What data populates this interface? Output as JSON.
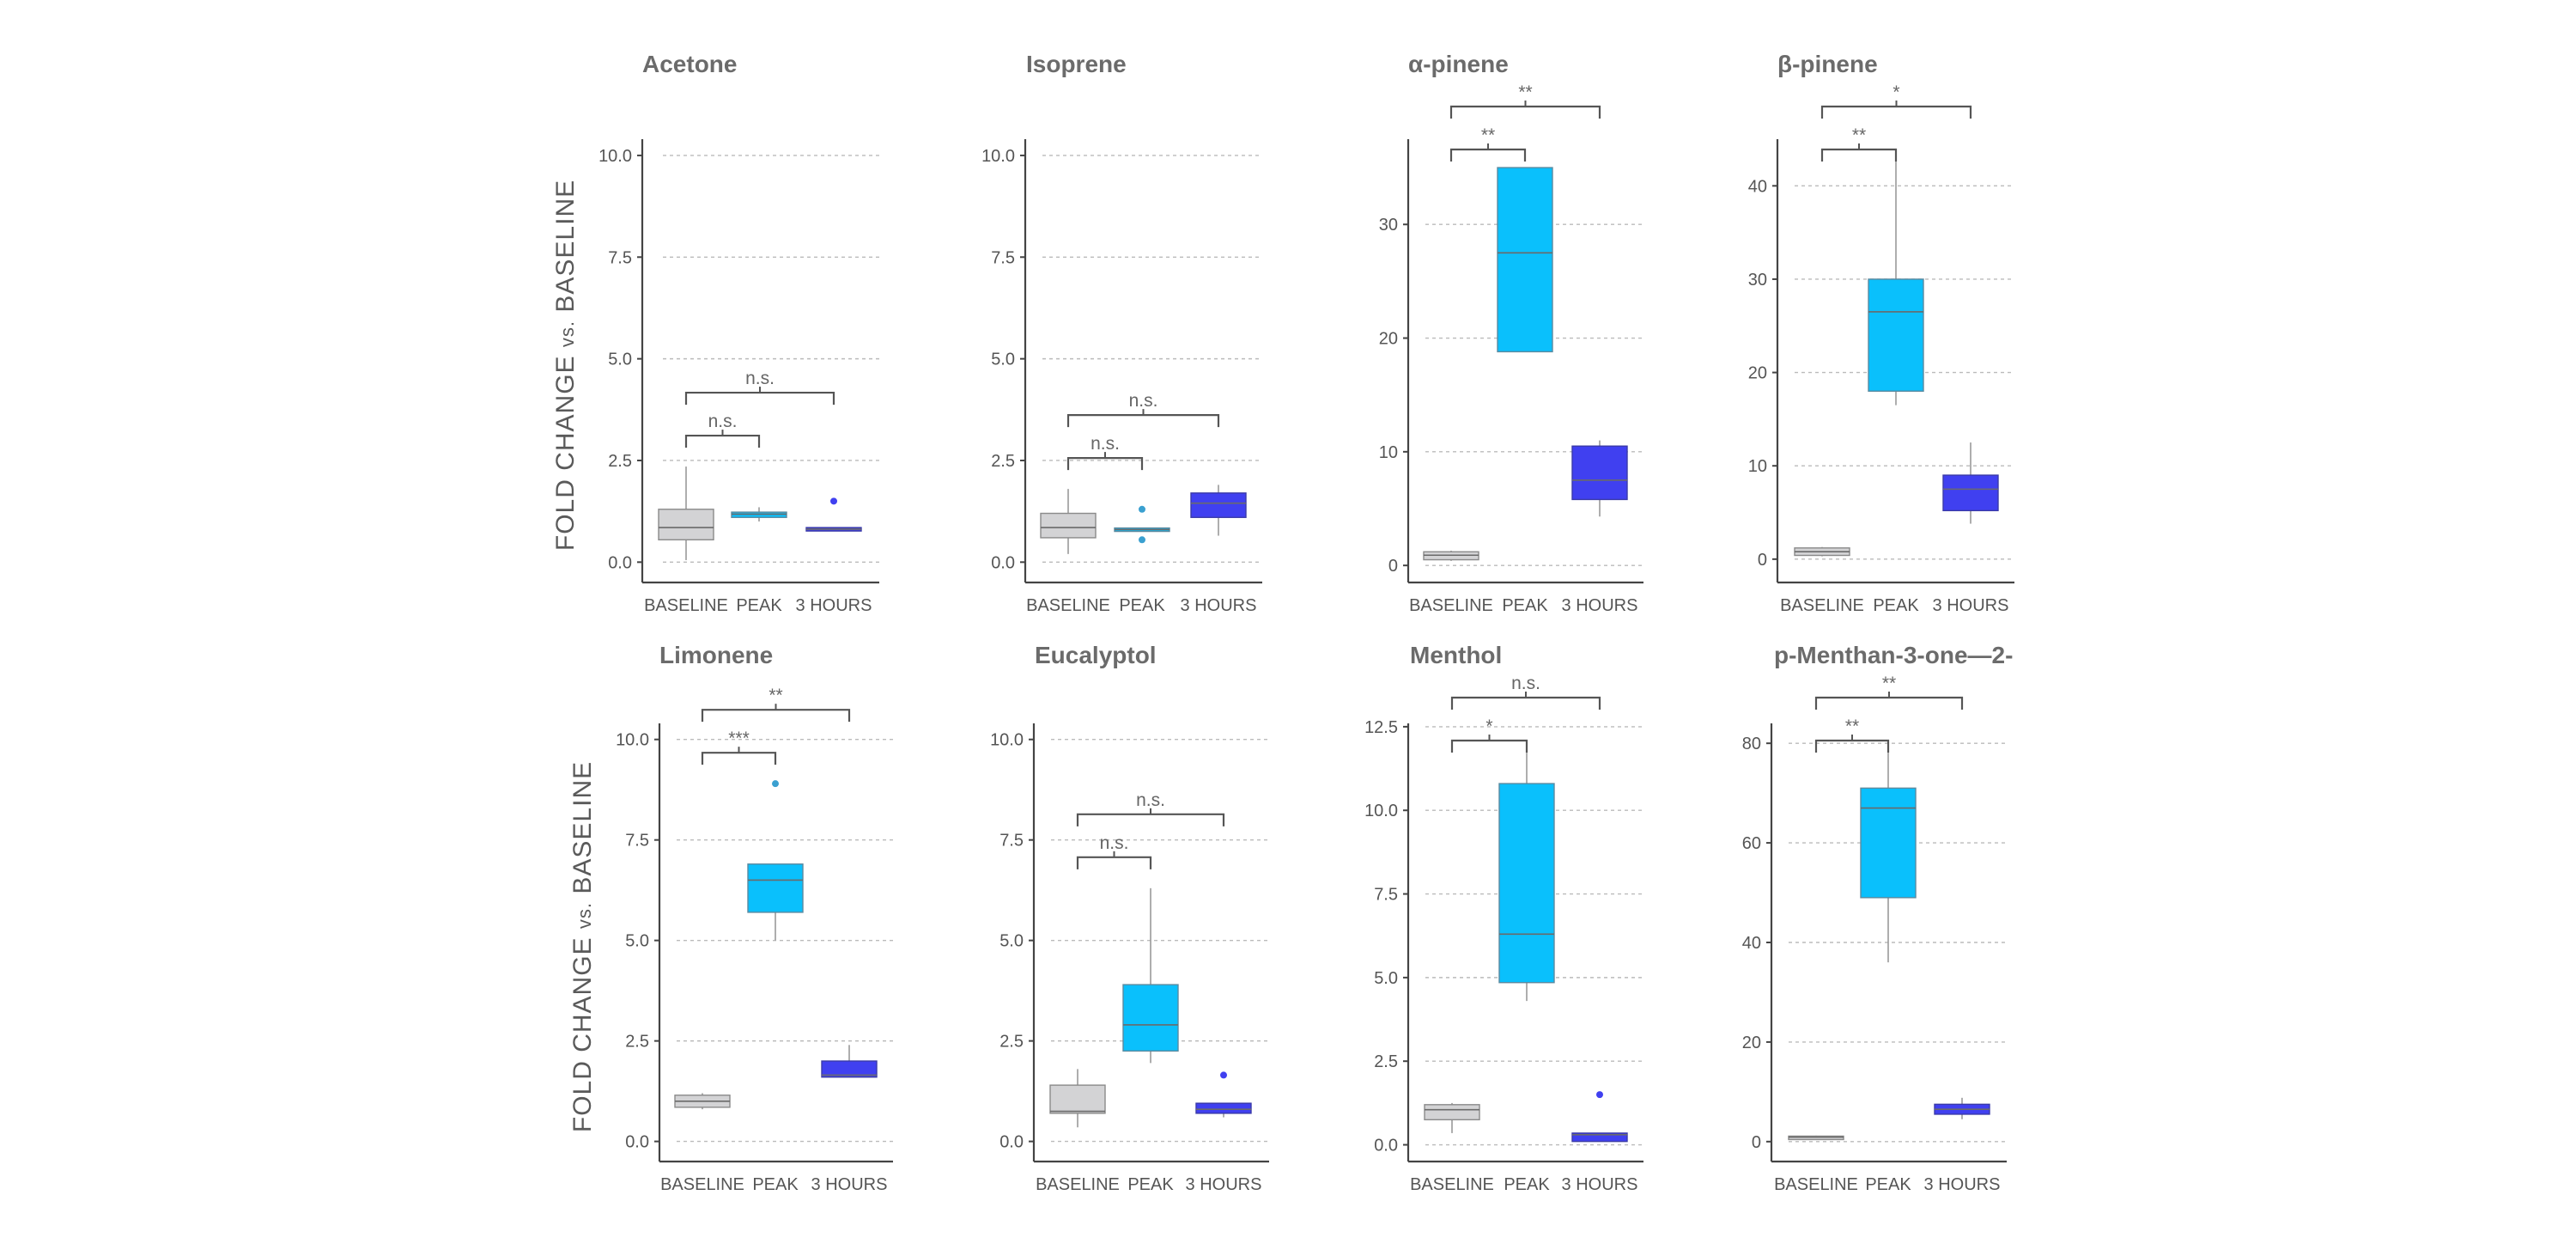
{
  "figure": {
    "y_axis_label_main": "FOLD CHANGE",
    "y_axis_label_vs": "vs.",
    "y_axis_label_end": "BASELINE",
    "colors": {
      "baseline": "#d3d3d5",
      "peak": "#0ac0fc",
      "three_hours": "#4040f0",
      "axis": "#444444",
      "grid": "#bbbbbb"
    }
  },
  "chart_data": [
    {
      "type": "box",
      "title": "Acetone",
      "categories": [
        "BASELINE",
        "PEAK",
        "3 HOURS"
      ],
      "ylim": [
        -0.5,
        10.4
      ],
      "yticks": [
        0.0,
        2.5,
        5.0,
        7.5,
        10.0
      ],
      "tick_decimals": 1,
      "grid": true,
      "boxes": [
        {
          "q1": 0.55,
          "median": 0.85,
          "q3": 1.3,
          "whisker_low": 0.05,
          "whisker_high": 2.35,
          "outliers": []
        },
        {
          "q1": 1.1,
          "median": 1.18,
          "q3": 1.23,
          "whisker_low": 1.0,
          "whisker_high": 1.35,
          "outliers": []
        },
        {
          "q1": 0.78,
          "median": 0.81,
          "q3": 0.85,
          "whisker_low": 0.78,
          "whisker_high": 0.85,
          "outliers": [
            1.5
          ]
        }
      ],
      "significance": [
        {
          "from": 0,
          "to": 1,
          "label": "n.s."
        },
        {
          "from": 0,
          "to": 2,
          "label": "n.s."
        }
      ]
    },
    {
      "type": "box",
      "title": "Isoprene",
      "categories": [
        "BASELINE",
        "PEAK",
        "3 HOURS"
      ],
      "ylim": [
        -0.5,
        10.4
      ],
      "yticks": [
        0.0,
        2.5,
        5.0,
        7.5,
        10.0
      ],
      "tick_decimals": 1,
      "grid": true,
      "boxes": [
        {
          "q1": 0.6,
          "median": 0.85,
          "q3": 1.2,
          "whisker_low": 0.2,
          "whisker_high": 1.8,
          "outliers": []
        },
        {
          "q1": 0.76,
          "median": 0.8,
          "q3": 0.84,
          "whisker_low": 0.76,
          "whisker_high": 0.84,
          "outliers": [
            1.3,
            0.55
          ]
        },
        {
          "q1": 1.1,
          "median": 1.45,
          "q3": 1.7,
          "whisker_low": 0.65,
          "whisker_high": 1.9,
          "outliers": []
        }
      ],
      "significance": [
        {
          "from": 0,
          "to": 1,
          "label": "n.s."
        },
        {
          "from": 0,
          "to": 2,
          "label": "n.s."
        }
      ]
    },
    {
      "type": "box",
      "title": "α-pinene",
      "categories": [
        "BASELINE",
        "PEAK",
        "3 HOURS"
      ],
      "ylim": [
        -1.5,
        37.5
      ],
      "yticks": [
        0,
        10,
        20,
        30
      ],
      "tick_decimals": 0,
      "grid": true,
      "boxes": [
        {
          "q1": 0.5,
          "median": 0.9,
          "q3": 1.2,
          "whisker_low": 0.4,
          "whisker_high": 1.3,
          "outliers": []
        },
        {
          "q1": 18.8,
          "median": 27.5,
          "q3": 35.0,
          "whisker_low": 18.8,
          "whisker_high": 35.0,
          "outliers": []
        },
        {
          "q1": 5.8,
          "median": 7.5,
          "q3": 10.5,
          "whisker_low": 4.3,
          "whisker_high": 11.0,
          "outliers": []
        }
      ],
      "significance": [
        {
          "from": 0,
          "to": 1,
          "label": "**"
        },
        {
          "from": 0,
          "to": 2,
          "label": "**"
        }
      ]
    },
    {
      "type": "box",
      "title": "β-pinene",
      "categories": [
        "BASELINE",
        "PEAK",
        "3 HOURS"
      ],
      "ylim": [
        -2.5,
        45
      ],
      "yticks": [
        0,
        10,
        20,
        30,
        40
      ],
      "tick_decimals": 0,
      "grid": true,
      "boxes": [
        {
          "q1": 0.4,
          "median": 0.8,
          "q3": 1.2,
          "whisker_low": 0.3,
          "whisker_high": 1.3,
          "outliers": []
        },
        {
          "q1": 18.0,
          "median": 26.5,
          "q3": 30.0,
          "whisker_low": 16.5,
          "whisker_high": 43.5,
          "outliers": []
        },
        {
          "q1": 5.2,
          "median": 7.5,
          "q3": 9.0,
          "whisker_low": 3.8,
          "whisker_high": 12.5,
          "outliers": []
        }
      ],
      "significance": [
        {
          "from": 0,
          "to": 1,
          "label": "**"
        },
        {
          "from": 0,
          "to": 2,
          "label": "*"
        }
      ]
    },
    {
      "type": "box",
      "title": "Limonene",
      "categories": [
        "BASELINE",
        "PEAK",
        "3 HOURS"
      ],
      "ylim": [
        -0.5,
        10.4
      ],
      "yticks": [
        0.0,
        2.5,
        5.0,
        7.5,
        10.0
      ],
      "tick_decimals": 1,
      "grid": true,
      "boxes": [
        {
          "q1": 0.85,
          "median": 1.0,
          "q3": 1.15,
          "whisker_low": 0.8,
          "whisker_high": 1.2,
          "outliers": []
        },
        {
          "q1": 5.7,
          "median": 6.5,
          "q3": 6.9,
          "whisker_low": 5.0,
          "whisker_high": 6.9,
          "outliers": [
            8.9
          ]
        },
        {
          "q1": 1.6,
          "median": 1.65,
          "q3": 2.0,
          "whisker_low": 1.6,
          "whisker_high": 2.4,
          "outliers": []
        }
      ],
      "significance": [
        {
          "from": 0,
          "to": 1,
          "label": "***"
        },
        {
          "from": 0,
          "to": 2,
          "label": "**"
        }
      ]
    },
    {
      "type": "box",
      "title": "Eucalyptol",
      "categories": [
        "BASELINE",
        "PEAK",
        "3 HOURS"
      ],
      "ylim": [
        -0.5,
        10.4
      ],
      "yticks": [
        0.0,
        2.5,
        5.0,
        7.5,
        10.0
      ],
      "tick_decimals": 1,
      "grid": true,
      "boxes": [
        {
          "q1": 0.7,
          "median": 0.75,
          "q3": 1.4,
          "whisker_low": 0.35,
          "whisker_high": 1.8,
          "outliers": []
        },
        {
          "q1": 2.25,
          "median": 2.9,
          "q3": 3.9,
          "whisker_low": 1.95,
          "whisker_high": 6.3,
          "outliers": []
        },
        {
          "q1": 0.7,
          "median": 0.8,
          "q3": 0.95,
          "whisker_low": 0.6,
          "whisker_high": 0.95,
          "outliers": [
            1.65
          ]
        }
      ],
      "significance": [
        {
          "from": 0,
          "to": 1,
          "label": "n.s."
        },
        {
          "from": 0,
          "to": 2,
          "label": "n.s."
        }
      ]
    },
    {
      "type": "box",
      "title": "Menthol",
      "categories": [
        "BASELINE",
        "PEAK",
        "3 HOURS"
      ],
      "ylim": [
        -0.5,
        12.6
      ],
      "yticks": [
        0.0,
        2.5,
        5.0,
        7.5,
        10.0,
        12.5
      ],
      "tick_decimals": 1,
      "grid": true,
      "boxes": [
        {
          "q1": 0.75,
          "median": 1.05,
          "q3": 1.2,
          "whisker_low": 0.35,
          "whisker_high": 1.25,
          "outliers": []
        },
        {
          "q1": 4.85,
          "median": 6.3,
          "q3": 10.8,
          "whisker_low": 4.3,
          "whisker_high": 12.1,
          "outliers": []
        },
        {
          "q1": 0.1,
          "median": 0.3,
          "q3": 0.35,
          "whisker_low": 0.1,
          "whisker_high": 0.35,
          "outliers": [
            1.5
          ]
        }
      ],
      "significance": [
        {
          "from": 0,
          "to": 1,
          "label": "*"
        },
        {
          "from": 0,
          "to": 2,
          "label": "n.s."
        }
      ]
    },
    {
      "type": "box",
      "title": "p-Menthan-3-one—2-",
      "categories": [
        "BASELINE",
        "PEAK",
        "3 HOURS"
      ],
      "ylim": [
        -4,
        84
      ],
      "yticks": [
        0,
        20,
        40,
        60,
        80
      ],
      "tick_decimals": 0,
      "grid": true,
      "boxes": [
        {
          "q1": 0.6,
          "median": 0.9,
          "q3": 1.1,
          "whisker_low": 0.5,
          "whisker_high": 1.2,
          "outliers": []
        },
        {
          "q1": 49.0,
          "median": 67.0,
          "q3": 71.0,
          "whisker_low": 36.0,
          "whisker_high": 79.0,
          "outliers": []
        },
        {
          "q1": 5.5,
          "median": 6.5,
          "q3": 7.5,
          "whisker_low": 4.5,
          "whisker_high": 8.8,
          "outliers": []
        }
      ],
      "significance": [
        {
          "from": 0,
          "to": 1,
          "label": "**"
        },
        {
          "from": 0,
          "to": 2,
          "label": "**"
        }
      ]
    }
  ]
}
